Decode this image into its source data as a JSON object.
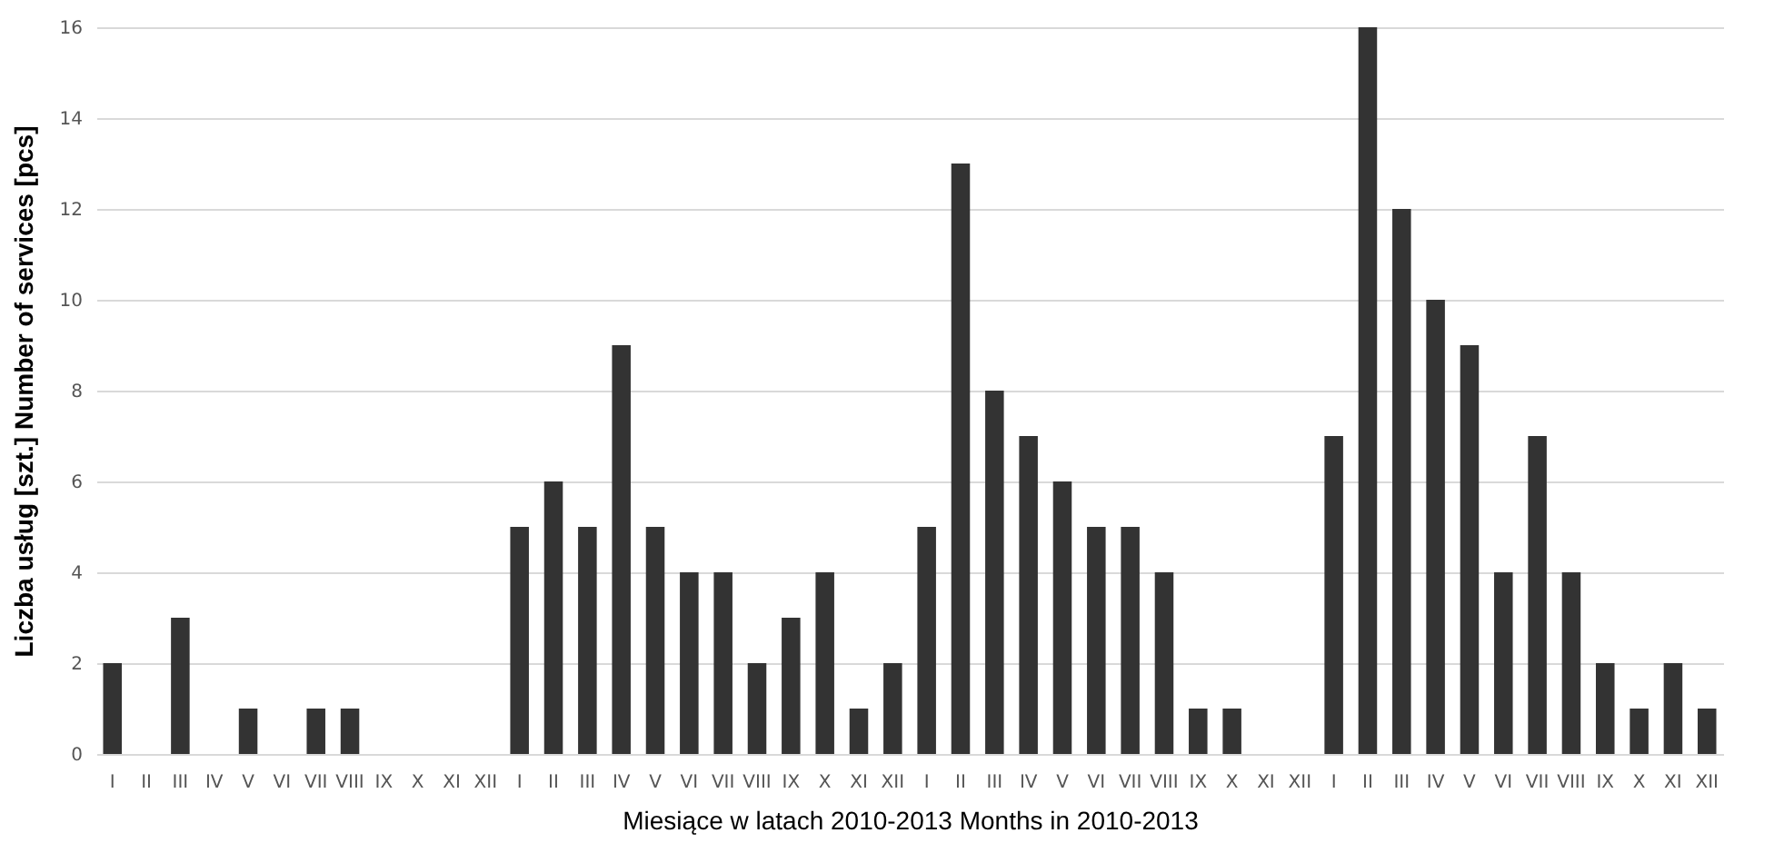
{
  "chart_data": {
    "type": "bar",
    "xlabel": "Miesiące w latach 2010-2013 Months in 2010-2013",
    "ylabel": "Liczba usług [szt.] Number of services [pcs]",
    "categories": [
      "I",
      "II",
      "III",
      "IV",
      "V",
      "VI",
      "VII",
      "VIII",
      "IX",
      "X",
      "XI",
      "XII",
      "I",
      "II",
      "III",
      "IV",
      "V",
      "VI",
      "VII",
      "VIII",
      "IX",
      "X",
      "XI",
      "XII",
      "I",
      "II",
      "III",
      "IV",
      "V",
      "VI",
      "VII",
      "VIII",
      "IX",
      "X",
      "XI",
      "XII",
      "I",
      "II",
      "III",
      "IV",
      "V",
      "VI",
      "VII",
      "VIII",
      "IX",
      "X",
      "XI",
      "XII"
    ],
    "values": [
      2,
      0,
      3,
      0,
      1,
      0,
      1,
      1,
      0,
      0,
      0,
      0,
      5,
      6,
      5,
      9,
      5,
      4,
      4,
      2,
      3,
      4,
      1,
      2,
      5,
      13,
      8,
      7,
      6,
      5,
      5,
      4,
      1,
      1,
      0,
      0,
      7,
      16,
      12,
      10,
      9,
      4,
      7,
      4,
      2,
      1,
      2,
      1
    ],
    "color": "#333333",
    "ylim": [
      0,
      16
    ],
    "yticks": [
      0,
      2,
      4,
      6,
      8,
      10,
      12,
      14,
      16
    ],
    "grid": "y"
  }
}
